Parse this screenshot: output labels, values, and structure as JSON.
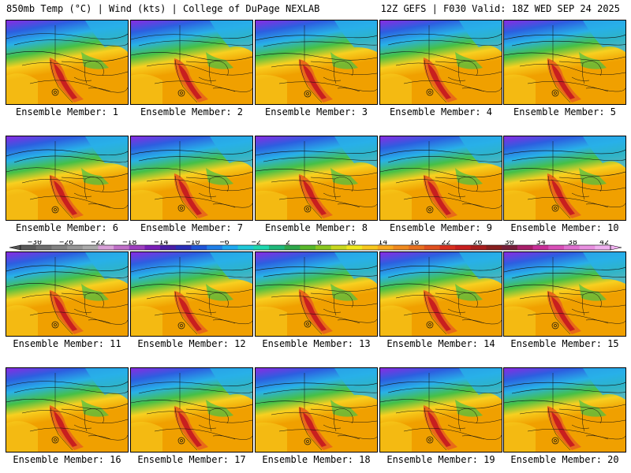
{
  "header": {
    "title_left": "850mb Temp (°C) | Wind (kts) | College of DuPage NEXLAB",
    "title_right": "12Z GEFS | F030 Valid: 18Z WED SEP 24 2025"
  },
  "members": [
    {
      "label": "Ensemble Member: 1"
    },
    {
      "label": "Ensemble Member: 2"
    },
    {
      "label": "Ensemble Member: 3"
    },
    {
      "label": "Ensemble Member: 4"
    },
    {
      "label": "Ensemble Member: 5"
    },
    {
      "label": "Ensemble Member: 6"
    },
    {
      "label": "Ensemble Member: 7"
    },
    {
      "label": "Ensemble Member: 8"
    },
    {
      "label": "Ensemble Member: 9"
    },
    {
      "label": "Ensemble Member: 10"
    },
    {
      "label": "Ensemble Member: 11"
    },
    {
      "label": "Ensemble Member: 12"
    },
    {
      "label": "Ensemble Member: 13"
    },
    {
      "label": "Ensemble Member: 14"
    },
    {
      "label": "Ensemble Member: 15"
    },
    {
      "label": "Ensemble Member: 16"
    },
    {
      "label": "Ensemble Member: 17"
    },
    {
      "label": "Ensemble Member: 18"
    },
    {
      "label": "Ensemble Member: 19"
    },
    {
      "label": "Ensemble Member: 20"
    }
  ],
  "colorbar": {
    "tick_labels": [
      "-30",
      "-26",
      "-22",
      "-18",
      "-14",
      "-10",
      "-6",
      "-2",
      "2",
      "6",
      "10",
      "14",
      "18",
      "22",
      "26",
      "30",
      "34",
      "38",
      "42"
    ],
    "colors": [
      "#5a5a5a",
      "#6e6e6e",
      "#828282",
      "#969696",
      "#aaaaaa",
      "#d8a0d8",
      "#c070c8",
      "#9e3fc0",
      "#7a1fb8",
      "#4a1fa8",
      "#2a2fb8",
      "#1f55d8",
      "#1f7fe8",
      "#1fa8f0",
      "#1fc8d8",
      "#1fd8b0",
      "#1fb87a",
      "#2ea84a",
      "#58b82a",
      "#8ac81f",
      "#c8d81f",
      "#f0e81f",
      "#f8c81f",
      "#f8a81f",
      "#f08a1f",
      "#e8701f",
      "#e0501f",
      "#d8301f",
      "#c81f1f",
      "#a81f1f",
      "#881f1f",
      "#781f3a",
      "#a81f6a",
      "#c82f98",
      "#d84fb8",
      "#e070d0",
      "#e890e0",
      "#f0b0f0"
    ]
  },
  "colors": {
    "cold": "#8a2be2",
    "cool": "#28b0e8",
    "mild": "#46c046",
    "warm": "#f8d020",
    "hot": "#f0a000",
    "hotter": "#e86a18",
    "heat": "#c81f1f"
  }
}
